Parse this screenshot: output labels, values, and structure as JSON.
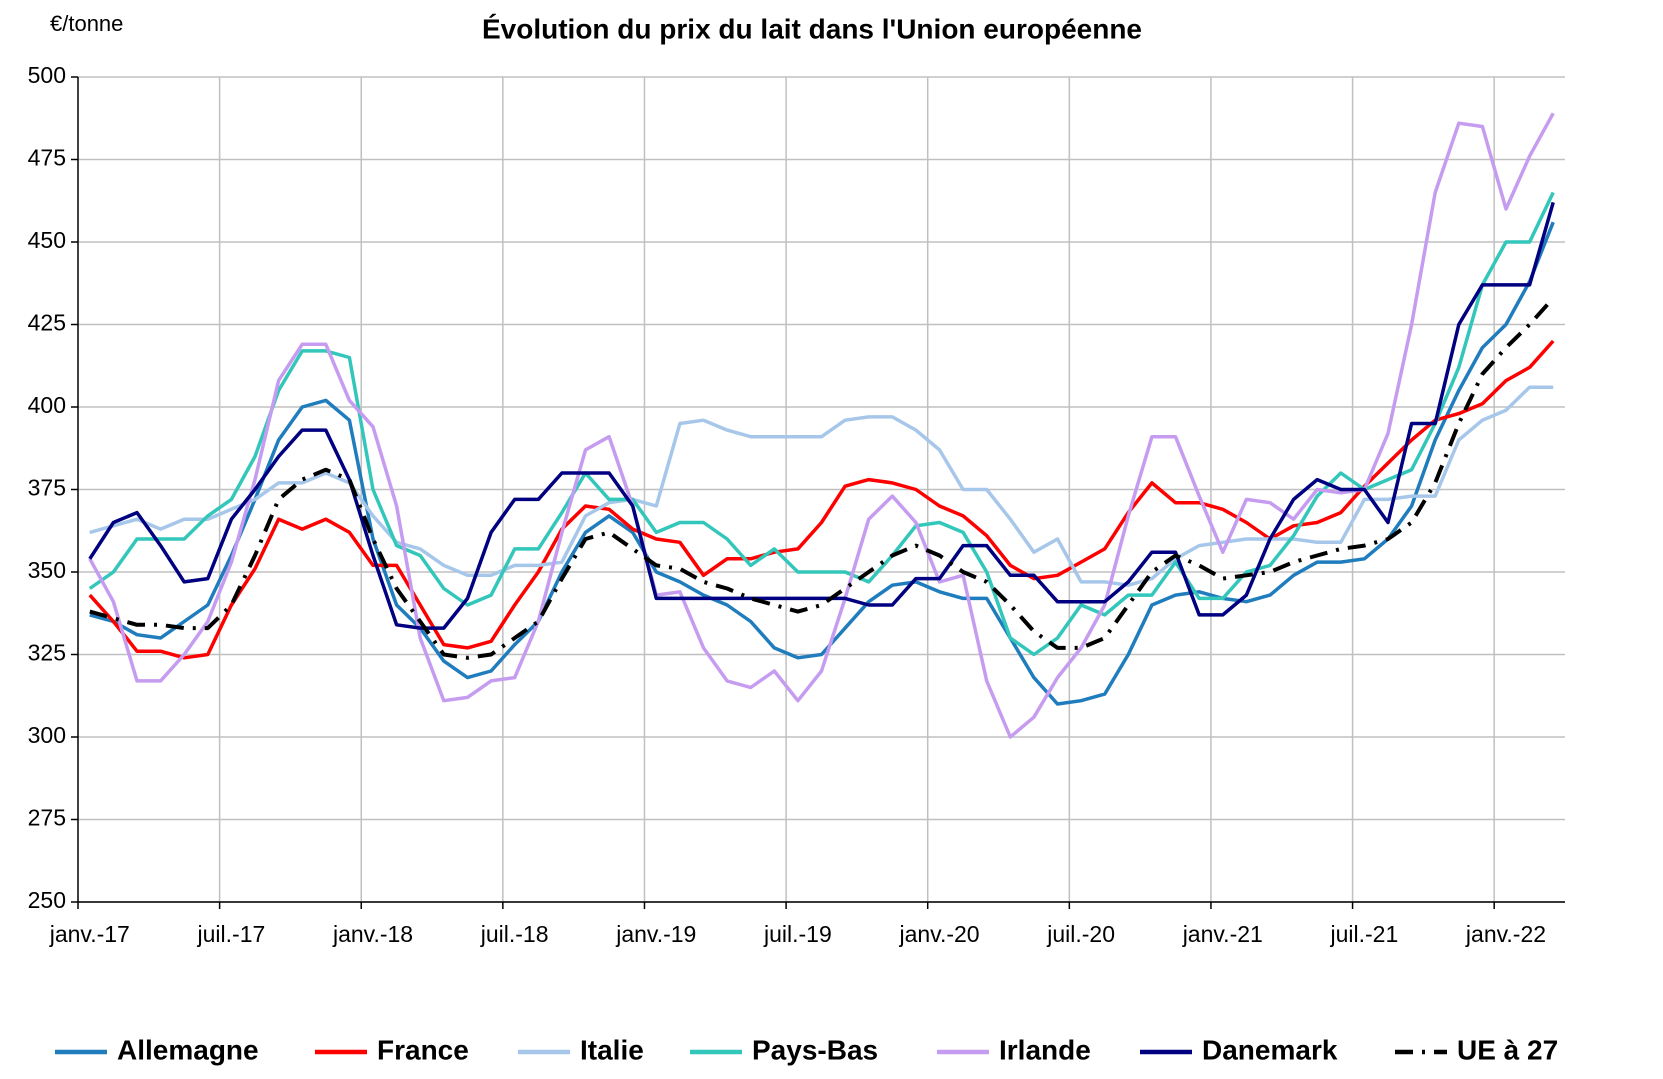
{
  "chart_data": {
    "type": "line",
    "title": "Évolution du prix du lait dans l'Union européenne",
    "y_label": "€/tonne",
    "categories": [
      "janv.-17",
      null,
      null,
      null,
      null,
      null,
      "juil.-17",
      null,
      null,
      null,
      null,
      null,
      "janv.-18",
      null,
      null,
      null,
      null,
      null,
      "juil.-18",
      null,
      null,
      null,
      null,
      null,
      "janv.-19",
      null,
      null,
      null,
      null,
      null,
      "juil.-19",
      null,
      null,
      null,
      null,
      null,
      "janv.-20",
      null,
      null,
      null,
      null,
      null,
      "juil.-20",
      null,
      null,
      null,
      null,
      null,
      "janv.-21",
      null,
      null,
      null,
      null,
      null,
      "juil.-21",
      null,
      null,
      null,
      null,
      null,
      "janv.-22",
      null,
      null
    ],
    "ylim": [
      250,
      500
    ],
    "yticks": [
      250,
      275,
      300,
      325,
      350,
      375,
      400,
      425,
      450,
      475,
      500
    ],
    "grid": true,
    "series": [
      {
        "name": "Allemagne",
        "color": "#1f7cbd",
        "values": [
          337,
          335,
          331,
          330,
          335,
          340,
          355,
          372,
          390,
          400,
          402,
          396,
          360,
          340,
          333,
          323,
          318,
          320,
          328,
          335,
          350,
          362,
          367,
          362,
          350,
          347,
          343,
          340,
          335,
          327,
          324,
          325,
          333,
          341,
          346,
          347,
          344,
          342,
          342,
          330,
          318,
          310,
          311,
          313,
          325,
          340,
          343,
          344,
          342,
          341,
          343,
          349,
          353,
          353,
          354,
          360,
          370,
          390,
          405,
          418,
          425,
          438,
          456
        ]
      },
      {
        "name": "France",
        "color": "#ff0000",
        "values": [
          343,
          335,
          326,
          326,
          324,
          325,
          340,
          351,
          366,
          363,
          366,
          362,
          352,
          352,
          340,
          328,
          327,
          329,
          340,
          350,
          363,
          370,
          369,
          363,
          360,
          359,
          349,
          354,
          354,
          356,
          357,
          365,
          376,
          378,
          377,
          375,
          370,
          367,
          361,
          352,
          348,
          349,
          353,
          357,
          368,
          377,
          371,
          371,
          369,
          365,
          360,
          364,
          365,
          368,
          376,
          383,
          390,
          396,
          398,
          401,
          408,
          412,
          420
        ]
      },
      {
        "name": "Italie",
        "color": "#a7c7ea",
        "values": [
          362,
          364,
          366,
          363,
          366,
          366,
          369,
          372,
          377,
          377,
          380,
          377,
          367,
          359,
          357,
          352,
          349,
          349,
          352,
          352,
          353,
          367,
          371,
          372,
          370,
          395,
          396,
          393,
          391,
          391,
          391,
          391,
          396,
          397,
          397,
          393,
          387,
          375,
          375,
          366,
          356,
          360,
          347,
          347,
          346,
          348,
          354,
          358,
          359,
          360,
          360,
          360,
          359,
          359,
          372,
          372,
          373,
          373,
          390,
          396,
          399,
          406,
          406
        ]
      },
      {
        "name": "Pays-Bas",
        "color": "#33c6ba",
        "values": [
          345,
          350,
          360,
          360,
          360,
          367,
          372,
          385,
          405,
          417,
          417,
          415,
          375,
          358,
          355,
          345,
          340,
          343,
          357,
          357,
          368,
          380,
          372,
          372,
          362,
          365,
          365,
          360,
          352,
          357,
          350,
          350,
          350,
          347,
          355,
          364,
          365,
          362,
          350,
          330,
          325,
          330,
          340,
          337,
          343,
          343,
          353,
          342,
          342,
          350,
          352,
          361,
          373,
          380,
          375,
          378,
          381,
          395,
          412,
          437,
          450,
          450,
          465
        ]
      },
      {
        "name": "Irlande",
        "color": "#c59cf0",
        "values": [
          354,
          341,
          317,
          317,
          325,
          335,
          353,
          378,
          408,
          419,
          419,
          402,
          394,
          370,
          330,
          311,
          312,
          317,
          318,
          335,
          362,
          387,
          391,
          370,
          343,
          344,
          327,
          317,
          315,
          320,
          311,
          320,
          342,
          366,
          373,
          365,
          347,
          349,
          317,
          300,
          306,
          318,
          327,
          340,
          367,
          391,
          391,
          373,
          356,
          372,
          371,
          366,
          375,
          374,
          375,
          392,
          425,
          465,
          486,
          485,
          460,
          476,
          489
        ]
      },
      {
        "name": "Danemark",
        "color": "#000080",
        "values": [
          354,
          365,
          368,
          358,
          347,
          348,
          366,
          375,
          385,
          393,
          393,
          378,
          355,
          334,
          333,
          333,
          342,
          362,
          372,
          372,
          380,
          380,
          380,
          370,
          342,
          342,
          342,
          342,
          342,
          342,
          342,
          342,
          342,
          340,
          340,
          348,
          348,
          358,
          358,
          349,
          349,
          341,
          341,
          341,
          347,
          356,
          356,
          337,
          337,
          343,
          360,
          372,
          378,
          375,
          375,
          365,
          395,
          395,
          425,
          437,
          437,
          437,
          462
        ]
      },
      {
        "name": "UE à 27",
        "color": "#000000",
        "dash": true,
        "values": [
          338,
          336,
          334,
          334,
          333,
          333,
          340,
          355,
          372,
          378,
          381,
          378,
          360,
          345,
          335,
          325,
          324,
          325,
          330,
          335,
          348,
          360,
          362,
          357,
          352,
          351,
          347,
          345,
          342,
          340,
          338,
          340,
          345,
          350,
          355,
          358,
          355,
          350,
          347,
          340,
          332,
          327,
          327,
          330,
          340,
          350,
          355,
          352,
          348,
          349,
          350,
          353,
          355,
          357,
          358,
          360,
          365,
          377,
          395,
          410,
          418,
          425,
          433
        ]
      }
    ]
  }
}
